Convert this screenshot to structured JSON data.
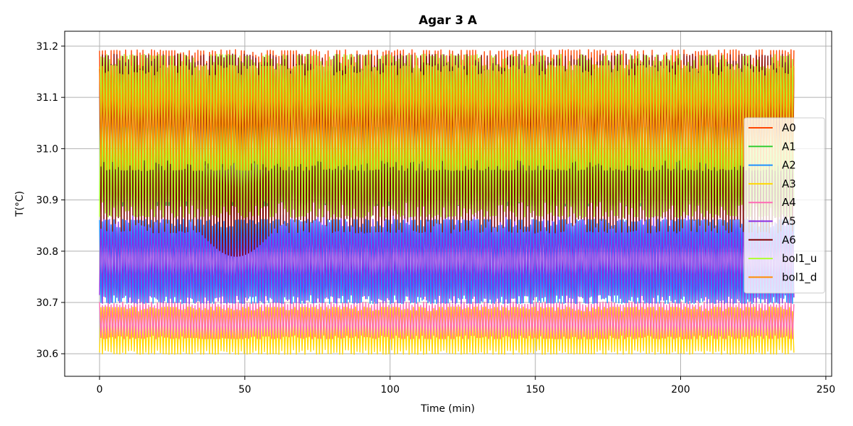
{
  "chart_data": {
    "type": "line",
    "title": "Agar 3 A",
    "xlabel": "Time (min)",
    "ylabel": "T(°C)",
    "xlim": [
      -12,
      252
    ],
    "ylim": [
      30.556,
      31.229
    ],
    "xticks": [
      0,
      50,
      100,
      150,
      200,
      250
    ],
    "yticks": [
      30.6,
      30.7,
      30.8,
      30.9,
      31.0,
      31.1,
      31.2
    ],
    "grid": true,
    "legend_position": "center-right",
    "x_range": [
      0,
      239
    ],
    "oscillation_count": 240,
    "series": [
      {
        "name": "A0",
        "color": "#ff4500",
        "low": 30.96,
        "high": 31.19,
        "order": 0
      },
      {
        "name": "A1",
        "color": "#32cd32",
        "low": 30.89,
        "high": 31.04,
        "order": 1
      },
      {
        "name": "A2",
        "color": "#1e90ff",
        "low": 30.7,
        "high": 30.86,
        "order": 2
      },
      {
        "name": "A3",
        "color": "#ffd700",
        "low": 30.6,
        "high": 30.69,
        "order": 3
      },
      {
        "name": "A4",
        "color": "#ff69b4",
        "low": 30.63,
        "high": 30.7,
        "order": 4
      },
      {
        "name": "A5",
        "color": "#8a2be2",
        "low": 30.7,
        "high": 30.87,
        "order": 5
      },
      {
        "name": "A6",
        "color": "#800000",
        "low": 30.84,
        "high": 31.18,
        "order": 6
      },
      {
        "name": "bol1_u",
        "color": "#adff2f",
        "low": 30.87,
        "high": 31.18,
        "order": 7
      },
      {
        "name": "bol1_d",
        "color": "#ff8c00",
        "low": 30.96,
        "high": 31.16,
        "order": 8
      }
    ]
  }
}
